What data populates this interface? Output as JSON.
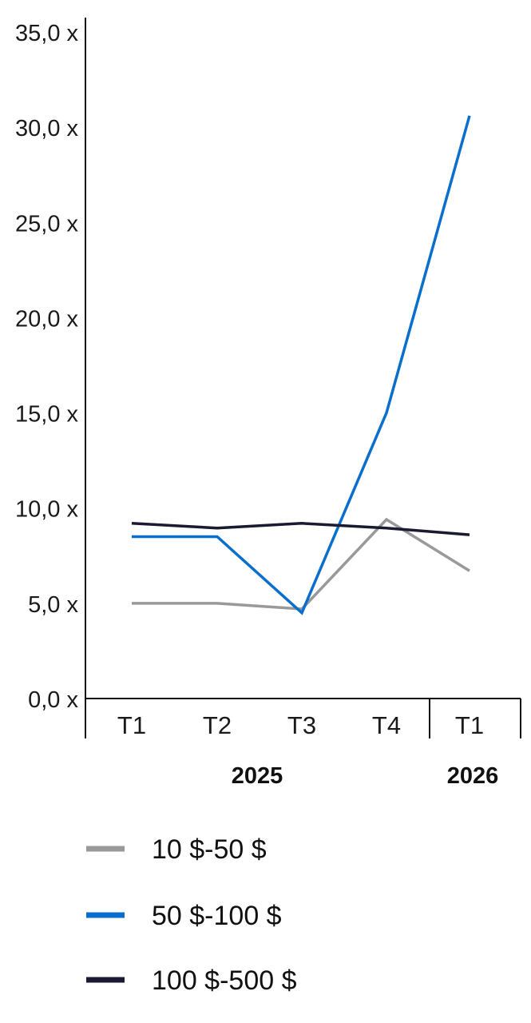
{
  "chart_data": {
    "type": "line",
    "title": "",
    "xlabel": "",
    "ylabel": "",
    "categories": [
      "T1",
      "T2",
      "T3",
      "T4",
      "T1"
    ],
    "year_groups": [
      {
        "label": "2025",
        "span": [
          0,
          3
        ]
      },
      {
        "label": "2026",
        "span": [
          4,
          4
        ]
      }
    ],
    "ylim": [
      0,
      35
    ],
    "yticks": [
      0,
      5,
      10,
      15,
      20,
      25,
      30,
      35
    ],
    "ytick_labels": [
      "0,0 x",
      "5,0 x",
      "10,0 x",
      "15,0 x",
      "20,0 x",
      "25,0 x",
      "30,0 x",
      "35,0 x"
    ],
    "grid": false,
    "legend_position": "bottom",
    "series": [
      {
        "name": "10 $-50 $",
        "color": "#999999",
        "values": [
          5.0,
          5.0,
          4.7,
          9.4,
          6.7
        ]
      },
      {
        "name": "50 $-100 $",
        "color": "#0a6fcc",
        "values": [
          8.5,
          8.5,
          4.5,
          15.0,
          30.6
        ]
      },
      {
        "name": "100 $-500 $",
        "color": "#1a1a33",
        "values": [
          9.2,
          8.95,
          9.2,
          8.95,
          8.6
        ]
      }
    ]
  }
}
